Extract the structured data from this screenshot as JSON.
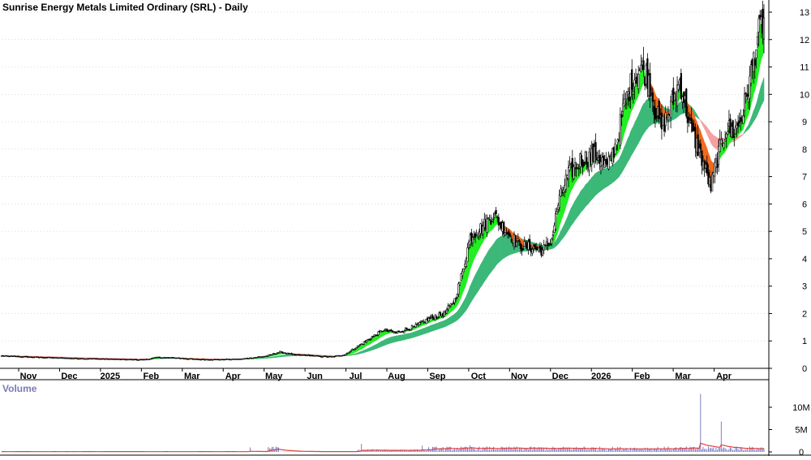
{
  "chart_data": {
    "type": "candlestick",
    "title": "Sunrise Energy Metals Limited Ordinary (SRL) - Daily",
    "volume_label": "Volume",
    "x_tick_labels": [
      "Nov",
      "Dec",
      "2025",
      "Feb",
      "Mar",
      "Apr",
      "May",
      "Jun",
      "Jul",
      "Aug",
      "Sep",
      "Oct",
      "Nov",
      "Dec",
      "2026",
      "Feb",
      "Mar",
      "Apr"
    ],
    "price_axis": {
      "ticks": [
        "0",
        "1",
        "2",
        "3",
        "4",
        "5",
        "6",
        "7",
        "8",
        "9",
        "10",
        "11",
        "12",
        "13"
      ],
      "ylim": [
        0,
        13
      ]
    },
    "volume_axis": {
      "ticks": [
        "0",
        "5M",
        "10M"
      ],
      "ylim": [
        0,
        14
      ]
    },
    "price_path": [
      [
        0,
        0.45
      ],
      [
        30,
        0.4
      ],
      [
        60,
        0.36
      ],
      [
        90,
        0.33
      ],
      [
        110,
        0.31
      ],
      [
        120,
        0.4
      ],
      [
        135,
        0.38
      ],
      [
        150,
        0.33
      ],
      [
        170,
        0.32
      ],
      [
        185,
        0.34
      ],
      [
        205,
        0.45
      ],
      [
        215,
        0.6
      ],
      [
        225,
        0.5
      ],
      [
        235,
        0.48
      ],
      [
        245,
        0.44
      ],
      [
        255,
        0.42
      ],
      [
        265,
        0.5
      ],
      [
        275,
        0.8
      ],
      [
        285,
        1.1
      ],
      [
        295,
        1.4
      ],
      [
        305,
        1.3
      ],
      [
        318,
        1.5
      ],
      [
        330,
        1.8
      ],
      [
        342,
        2.0
      ],
      [
        350,
        2.5
      ],
      [
        356,
        3.5
      ],
      [
        362,
        4.8
      ],
      [
        372,
        5.2
      ],
      [
        380,
        5.6
      ],
      [
        390,
        5.0
      ],
      [
        400,
        4.5
      ],
      [
        410,
        4.4
      ],
      [
        418,
        4.3
      ],
      [
        425,
        4.7
      ],
      [
        430,
        6.0
      ],
      [
        437,
        7.0
      ],
      [
        447,
        7.6
      ],
      [
        460,
        7.8
      ],
      [
        468,
        7.3
      ],
      [
        476,
        8.4
      ],
      [
        480,
        9.4
      ],
      [
        487,
        10.5
      ],
      [
        494,
        11.0
      ],
      [
        500,
        10.6
      ],
      [
        505,
        9.4
      ],
      [
        510,
        8.8
      ],
      [
        517,
        9.5
      ],
      [
        524,
        10.5
      ],
      [
        532,
        8.8
      ],
      [
        540,
        7.8
      ],
      [
        548,
        6.6
      ],
      [
        552,
        7.5
      ],
      [
        560,
        8.8
      ],
      [
        566,
        8.6
      ],
      [
        572,
        9.2
      ],
      [
        578,
        10.5
      ],
      [
        584,
        12.1
      ],
      [
        588,
        12.6
      ]
    ],
    "volume_spikes": [
      [
        540,
        13.0
      ],
      [
        556,
        6.8
      ],
      [
        278,
        1.8
      ],
      [
        325,
        1.4
      ],
      [
        362,
        1.5
      ],
      [
        450,
        1.2
      ],
      [
        192,
        1.0
      ]
    ],
    "n_days": 590,
    "colors": {
      "candle": "#000000",
      "short_mma_up": "#22ee22",
      "short_mma_down": "#f06a20",
      "long_mma_up": "#3cb878",
      "long_mma_down": "#f6a0a0",
      "volume_bar": "#7070c0",
      "volume_avg": "#e04040",
      "grid": "#bbbbbb"
    }
  }
}
